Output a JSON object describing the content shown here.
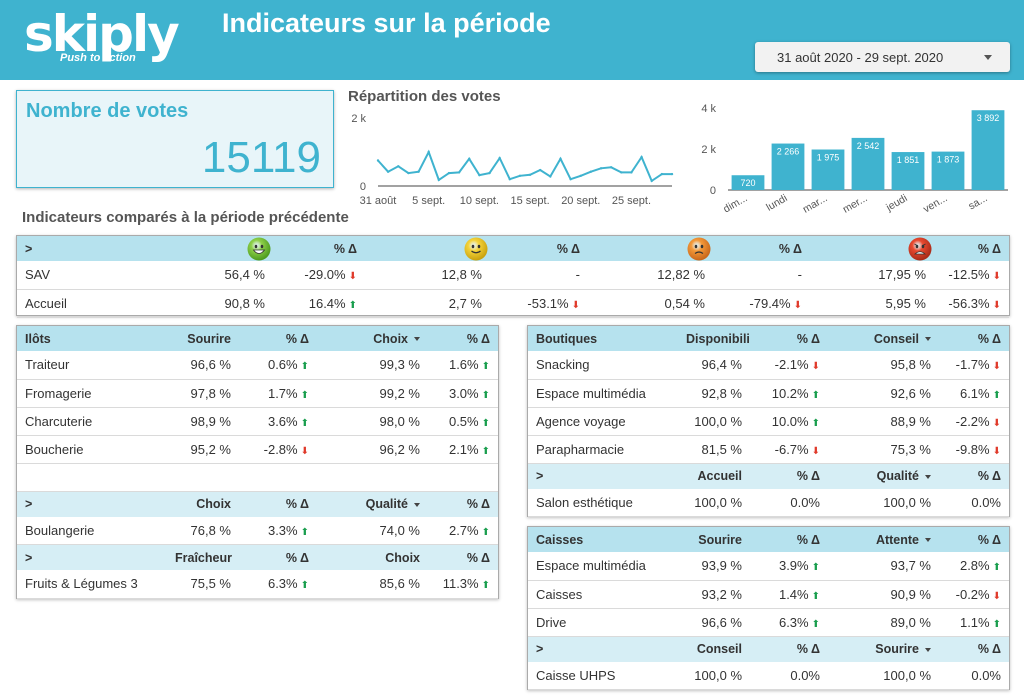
{
  "header": {
    "logo_text": "skiply",
    "logo_tagline": "Push to action",
    "title": "Indicateurs sur la période",
    "date_range": "31 août 2020 - 29 sept. 2020"
  },
  "votes_card": {
    "title": "Nombre de votes",
    "value": "15119"
  },
  "repartition": {
    "title": "Répartition des votes",
    "y_ticks": [
      "2 k",
      "0"
    ],
    "x_ticks": [
      "31 août",
      "5 sept.",
      "10 sept.",
      "15 sept.",
      "20 sept.",
      "25 sept."
    ]
  },
  "chart_data": [
    {
      "type": "line",
      "title": "Répartition des votes",
      "ylim": [
        0,
        2000
      ],
      "x": [
        "31 août",
        "1 sept.",
        "2 sept.",
        "3 sept.",
        "4 sept.",
        "5 sept.",
        "6 sept.",
        "7 sept.",
        "8 sept.",
        "9 sept.",
        "10 sept.",
        "11 sept.",
        "12 sept.",
        "13 sept.",
        "14 sept.",
        "15 sept.",
        "16 sept.",
        "17 sept.",
        "18 sept.",
        "19 sept.",
        "20 sept.",
        "21 sept.",
        "22 sept.",
        "23 sept.",
        "24 sept.",
        "25 sept.",
        "26 sept.",
        "27 sept.",
        "28 sept.",
        "29 sept."
      ],
      "values": [
        750,
        420,
        580,
        380,
        420,
        1000,
        180,
        380,
        400,
        800,
        320,
        380,
        820,
        200,
        300,
        330,
        470,
        280,
        800,
        200,
        300,
        420,
        520,
        550,
        400,
        400,
        850,
        150,
        350,
        350
      ],
      "x_ticks": [
        "31 août",
        "5 sept.",
        "10 sept.",
        "15 sept.",
        "20 sept.",
        "25 sept."
      ],
      "y_ticks": [
        "2 k",
        "0"
      ]
    },
    {
      "type": "bar",
      "categories": [
        "dim...",
        "lundi",
        "mar...",
        "mer...",
        "jeudi",
        "ven...",
        "sa..."
      ],
      "values": [
        720,
        2266,
        1975,
        2542,
        1851,
        1873,
        3892
      ],
      "labels": [
        "720",
        "2 266",
        "1 975",
        "2 542",
        "1 851",
        "1 873",
        "3 892"
      ],
      "y_ticks": [
        "4 k",
        "2 k",
        "0"
      ],
      "ylim": [
        0,
        4000
      ],
      "color": "#3fb3cf"
    }
  ],
  "compare": {
    "title": "Indicateurs comparés à la période précédente",
    "head_label": ">",
    "delta_label": "% Δ",
    "smileys": [
      "very-happy-icon",
      "happy-icon",
      "unhappy-icon",
      "very-unhappy-icon"
    ],
    "rows": [
      {
        "label": "SAV",
        "cells": [
          {
            "v": "56,4 %",
            "d": "-29.0%",
            "dir": "down"
          },
          {
            "v": "12,8 %",
            "d": "-",
            "dir": ""
          },
          {
            "v": "12,82 %",
            "d": "-",
            "dir": ""
          },
          {
            "v": "17,95 %",
            "d": "-12.5%",
            "dir": "down"
          }
        ]
      },
      {
        "label": "Accueil",
        "cells": [
          {
            "v": "90,8 %",
            "d": "16.4%",
            "dir": "up"
          },
          {
            "v": "2,7 %",
            "d": "-53.1%",
            "dir": "down"
          },
          {
            "v": "0,54 %",
            "d": "-79.4%",
            "dir": "down"
          },
          {
            "v": "5,95 %",
            "d": "-56.3%",
            "dir": "down"
          }
        ]
      }
    ]
  },
  "ilots": {
    "blocks": [
      {
        "head": [
          "Ilôts",
          "Sourire",
          "% Δ",
          "Choix",
          "% Δ"
        ],
        "sort_col": 3,
        "rows": [
          [
            "Traiteur",
            "96,6 %",
            "0.6%",
            "up",
            "99,3 %",
            "1.6%",
            "up"
          ],
          [
            "Fromagerie",
            "97,8 %",
            "1.7%",
            "up",
            "99,2 %",
            "3.0%",
            "up"
          ],
          [
            "Charcuterie",
            "98,9 %",
            "3.6%",
            "up",
            "98,0 %",
            "0.5%",
            "up"
          ],
          [
            "Boucherie",
            "95,2 %",
            "-2.8%",
            "down",
            "96,2 %",
            "2.1%",
            "up"
          ]
        ]
      },
      {
        "head": [
          ">",
          "Choix",
          "% Δ",
          "Qualité",
          "% Δ"
        ],
        "sort_col": 3,
        "rows": [
          [
            "Boulangerie",
            "76,8 %",
            "3.3%",
            "up",
            "74,0 %",
            "2.7%",
            "up"
          ]
        ]
      },
      {
        "head": [
          ">",
          "Fraîcheur",
          "% Δ",
          "Choix",
          "% Δ"
        ],
        "sort_col": -1,
        "rows": [
          [
            "Fruits & Légumes 3",
            "75,5 %",
            "6.3%",
            "up",
            "85,6 %",
            "11.3%",
            "up"
          ]
        ]
      }
    ]
  },
  "boutiques": {
    "blocks": [
      {
        "head": [
          "Boutiques",
          "Disponibilité",
          "% Δ",
          "Conseil",
          "% Δ"
        ],
        "sort_col": 3,
        "rows": [
          [
            "Snacking",
            "96,4 %",
            "-2.1%",
            "down",
            "95,8 %",
            "-1.7%",
            "down"
          ],
          [
            "Espace multimédia",
            "92,8 %",
            "10.2%",
            "up",
            "92,6 %",
            "6.1%",
            "up"
          ],
          [
            "Agence voyage",
            "100,0 %",
            "10.0%",
            "up",
            "88,9 %",
            "-2.2%",
            "down"
          ],
          [
            "Parapharmacie",
            "81,5 %",
            "-6.7%",
            "down",
            "75,3 %",
            "-9.8%",
            "down"
          ]
        ]
      },
      {
        "head": [
          ">",
          "Accueil",
          "% Δ",
          "Qualité",
          "% Δ"
        ],
        "sort_col": 3,
        "rows": [
          [
            "Salon esthétique",
            "100,0 %",
            "0.0%",
            "",
            "100,0 %",
            "0.0%",
            ""
          ]
        ]
      }
    ]
  },
  "caisses": {
    "blocks": [
      {
        "head": [
          "Caisses",
          "Sourire",
          "% Δ",
          "Attente",
          "% Δ"
        ],
        "sort_col": 3,
        "rows": [
          [
            "Espace multimédia",
            "93,9 %",
            "3.9%",
            "up",
            "93,7 %",
            "2.8%",
            "up"
          ],
          [
            "Caisses",
            "93,2 %",
            "1.4%",
            "up",
            "90,9 %",
            "-0.2%",
            "down"
          ],
          [
            "Drive",
            "96,6 %",
            "6.3%",
            "up",
            "89,0 %",
            "1.1%",
            "up"
          ]
        ]
      },
      {
        "head": [
          ">",
          "Conseil",
          "% Δ",
          "Sourire",
          "% Δ"
        ],
        "sort_col": 3,
        "rows": [
          [
            "Caisse UHPS",
            "100,0 %",
            "0.0%",
            "",
            "100,0 %",
            "0.0%",
            ""
          ]
        ]
      }
    ]
  }
}
